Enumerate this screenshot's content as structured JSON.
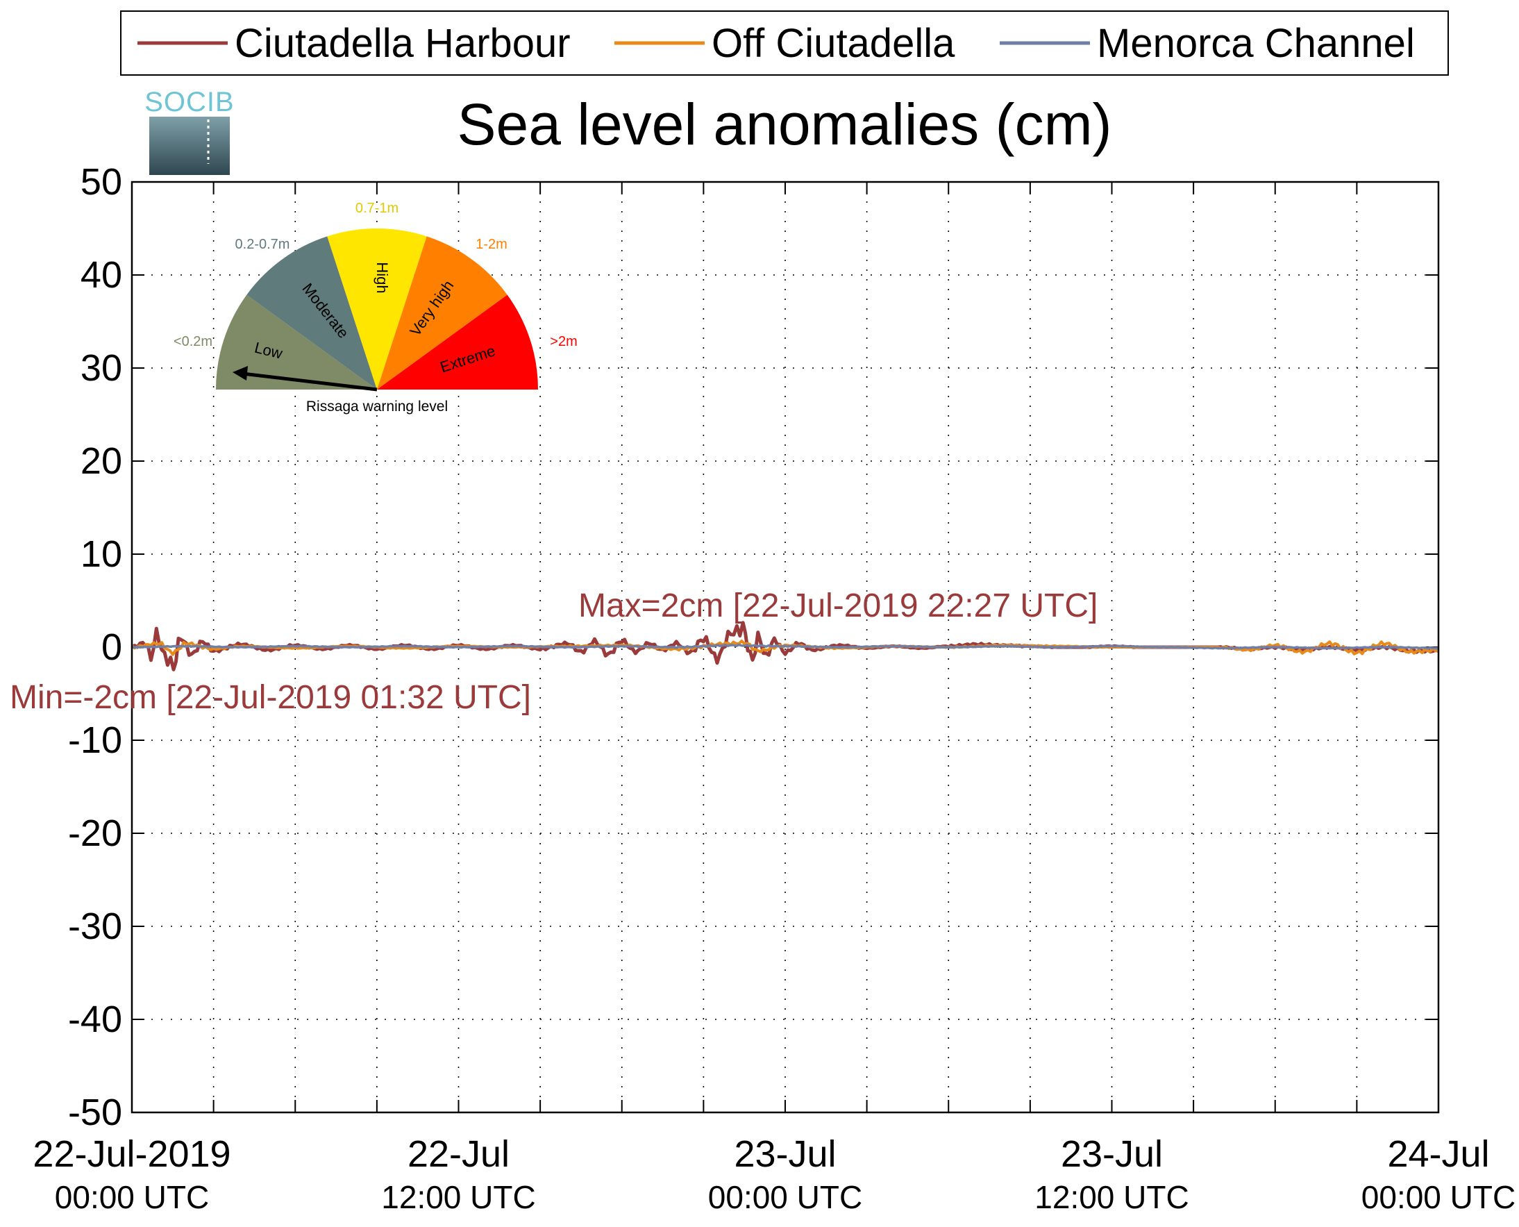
{
  "logo": {
    "text": "SOCIB",
    "colors": [
      "#6fc3d6",
      "#2f4a55"
    ]
  },
  "legend": {
    "entries": [
      {
        "name": "Ciutadella Harbour",
        "color": "#9b3a3a"
      },
      {
        "name": "Off Ciutadella",
        "color": "#e88a1a"
      },
      {
        "name": "Menorca Channel",
        "color": "#6f7fa8"
      }
    ],
    "placement": "top"
  },
  "gauge": {
    "caption": "Rissaga warning level",
    "pointer": "Low",
    "segments": [
      {
        "label": "Low",
        "range": "<0.2m",
        "color": "#7f8a66"
      },
      {
        "label": "Moderate",
        "range": "0.2-0.7m",
        "color": "#5f7b7b"
      },
      {
        "label": "High",
        "range": "0.7-1m",
        "color": "#ffe600"
      },
      {
        "label": "Very high",
        "range": "1-2m",
        "color": "#ff8000"
      },
      {
        "label": "Extreme",
        "range": ">2m",
        "color": "#ff0000"
      }
    ]
  },
  "annotations": {
    "max": "Max=2cm [22-Jul-2019 22:27 UTC]",
    "min": "Min=-2cm [22-Jul-2019 01:32 UTC]",
    "color": "#9b3a3a"
  },
  "chart_data": {
    "type": "line",
    "title": "Sea level anomalies (cm)",
    "xlabel": "",
    "ylabel": "",
    "ylim": [
      -50,
      50
    ],
    "yticks": [
      50,
      40,
      30,
      20,
      10,
      0,
      -10,
      -20,
      -30,
      -40,
      -50
    ],
    "xlim_hours": [
      0,
      48
    ],
    "x_minor_tick_hours": [
      3,
      6,
      9,
      12,
      15,
      18,
      21,
      24,
      27,
      30,
      33,
      36,
      39,
      42,
      45
    ],
    "xticks": [
      {
        "hour": 0,
        "line1": "22-Jul-2019",
        "line2": "00:00 UTC"
      },
      {
        "hour": 12,
        "line1": "22-Jul",
        "line2": "12:00 UTC"
      },
      {
        "hour": 24,
        "line1": "23-Jul",
        "line2": "00:00 UTC"
      },
      {
        "hour": 36,
        "line1": "23-Jul",
        "line2": "12:00 UTC"
      },
      {
        "hour": 48,
        "line1": "24-Jul",
        "line2": "00:00 UTC"
      }
    ],
    "grid": true,
    "series": [
      {
        "name": "Ciutadella Harbour",
        "color": "#9b3a3a",
        "x": [
          0,
          0.5,
          0.7,
          0.9,
          1.2,
          1.53,
          1.8,
          2.2,
          2.6,
          3,
          4,
          5,
          6,
          7,
          8,
          9,
          10,
          11,
          12,
          13,
          14,
          15,
          16,
          16.5,
          17,
          17.5,
          18,
          18.5,
          19,
          19.5,
          20,
          20.5,
          21,
          21.5,
          22,
          22.45,
          22.8,
          23,
          23.3,
          23.6,
          24,
          24.5,
          25,
          26,
          27,
          28,
          29,
          30,
          31,
          32,
          33,
          34,
          35,
          36,
          37,
          38,
          39,
          40,
          41,
          42,
          43,
          44,
          45,
          46,
          47,
          48
        ],
        "y": [
          0,
          0.5,
          -1.2,
          1.5,
          -1.0,
          -2.0,
          1.0,
          -0.8,
          0.6,
          -0.4,
          0.3,
          -0.3,
          0.2,
          -0.2,
          0.2,
          -0.2,
          0.2,
          -0.2,
          0.2,
          -0.2,
          0.2,
          -0.2,
          0.4,
          -0.5,
          0.6,
          -0.8,
          0.7,
          -0.5,
          0.4,
          -0.3,
          0.4,
          -0.6,
          0.9,
          -1.2,
          1.5,
          2.0,
          -1.5,
          1.2,
          -1.0,
          0.8,
          -0.6,
          0.4,
          -0.3,
          0.2,
          -0.1,
          0.1,
          -0.1,
          0.1,
          0.3,
          0.2,
          0.1,
          0.0,
          0.0,
          0.1,
          0.0,
          0.0,
          0.0,
          0.0,
          -0.2,
          0.0,
          -0.3,
          0.0,
          -0.3,
          0.0,
          -0.4,
          -0.4
        ]
      },
      {
        "name": "Off Ciutadella",
        "color": "#e88a1a",
        "x": [
          0,
          1,
          1.5,
          2,
          3,
          4,
          6,
          8,
          10,
          12,
          14,
          16,
          18,
          20,
          22,
          22.5,
          23,
          24,
          26,
          28,
          30,
          32,
          34,
          36,
          38,
          40,
          41,
          42,
          43,
          44,
          45,
          46,
          47,
          48
        ],
        "y": [
          0,
          0.4,
          -0.6,
          0.4,
          -0.2,
          0.1,
          -0.1,
          0.1,
          -0.1,
          0.1,
          0.0,
          0.1,
          0.2,
          -0.2,
          0.4,
          0.5,
          -0.4,
          0.2,
          -0.1,
          0.1,
          0.0,
          0.2,
          0.1,
          0.0,
          0.0,
          0.0,
          -0.3,
          0.2,
          -0.5,
          0.4,
          -0.6,
          0.4,
          -0.5,
          -0.3
        ]
      },
      {
        "name": "Menorca Channel",
        "color": "#6f7fa8",
        "x": [
          0,
          2,
          4,
          6,
          8,
          10,
          12,
          14,
          16,
          18,
          20,
          22,
          24,
          26,
          28,
          30,
          32,
          34,
          36,
          38,
          40,
          42,
          44,
          46,
          48
        ],
        "y": [
          0,
          0.1,
          0.0,
          0.1,
          0.0,
          0.1,
          0.0,
          0.1,
          0.0,
          0.1,
          0.0,
          0.2,
          0.1,
          0.0,
          0.1,
          0.0,
          0.1,
          0.0,
          0.1,
          0.0,
          -0.1,
          0.0,
          -0.1,
          0.0,
          -0.1
        ]
      }
    ]
  }
}
